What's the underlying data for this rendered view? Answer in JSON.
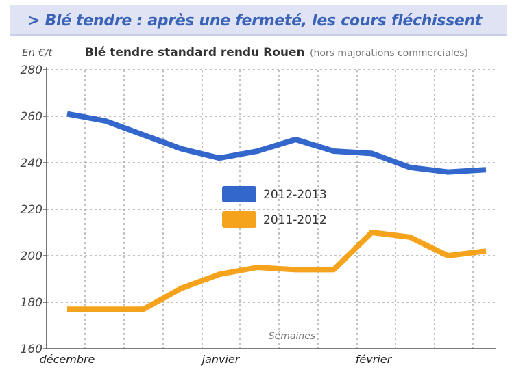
{
  "header": {
    "title": "> Blé tendre : après une fermeté, les cours fléchissent"
  },
  "chart_data": {
    "type": "line",
    "unit_label": "En €/t",
    "subtitle": "Blé tendre standard rendu Rouen",
    "subtitle_note": "(hors majorations commerciales)",
    "xlabel": "Sémaines",
    "month_labels": [
      "décembre",
      "janvier",
      "février"
    ],
    "ylim": [
      160,
      280
    ],
    "yticks": [
      160,
      180,
      200,
      220,
      240,
      260,
      280
    ],
    "grid": "dashed",
    "legend_placement": "center",
    "x": [
      0,
      1,
      2,
      3,
      4,
      5,
      6,
      7,
      8,
      9,
      10,
      11
    ],
    "series": [
      {
        "name": "2012-2013",
        "color": "#3367cc",
        "values": [
          261,
          258,
          252,
          246,
          242,
          245,
          250,
          245,
          244,
          238,
          236,
          237
        ]
      },
      {
        "name": "2011-2012",
        "color": "#f5a21c",
        "values": [
          177,
          177,
          177,
          186,
          192,
          195,
          194,
          194,
          210,
          208,
          200,
          202
        ]
      }
    ]
  }
}
